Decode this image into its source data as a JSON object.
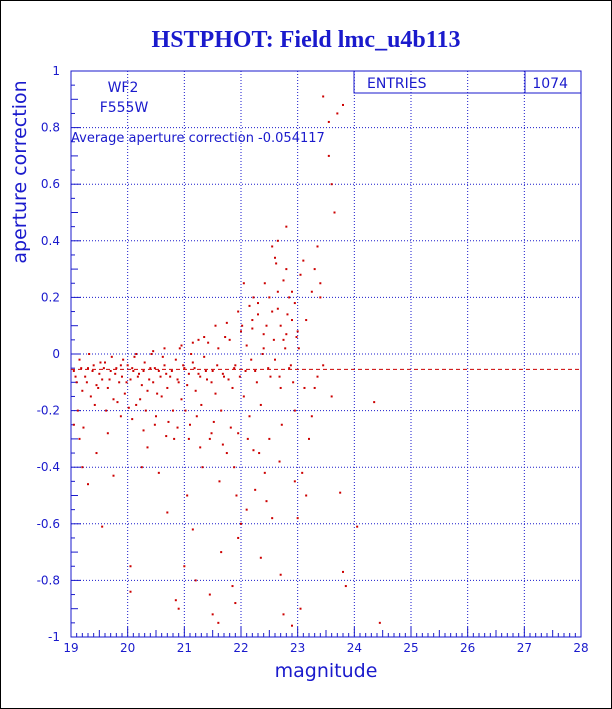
{
  "chart_data": {
    "type": "scatter",
    "title": "HSTPHOT: Field lmc_u4b113",
    "xlabel": "magnitude",
    "ylabel": "aperture correction",
    "xlim": [
      19,
      28
    ],
    "ylim": [
      -1,
      1
    ],
    "x_ticks": [
      "19",
      "20",
      "21",
      "22",
      "23",
      "24",
      "25",
      "26",
      "27",
      "28"
    ],
    "y_ticks": [
      "-1",
      "-0.8",
      "-0.6",
      "-0.4",
      "-0.2",
      "0",
      "0.2",
      "0.4",
      "0.6",
      "0.8",
      "1"
    ],
    "grid": true,
    "average_line": -0.054117,
    "annotations": {
      "chip": "WF2",
      "filter": "F555W",
      "average_text": "Average aperture correction -0.054117"
    },
    "stats_box": {
      "label": "ENTRIES",
      "value": "1074"
    },
    "points": [
      [
        19.05,
        -0.06
      ],
      [
        19.1,
        -0.1
      ],
      [
        19.15,
        -0.02
      ],
      [
        19.2,
        -0.13
      ],
      [
        19.25,
        -0.08
      ],
      [
        19.3,
        -0.05
      ],
      [
        19.35,
        -0.15
      ],
      [
        19.4,
        -0.04
      ],
      [
        19.45,
        -0.11
      ],
      [
        19.5,
        -0.07
      ],
      [
        19.55,
        -0.09
      ],
      [
        19.6,
        -0.03
      ],
      [
        19.65,
        -0.12
      ],
      [
        19.7,
        -0.06
      ],
      [
        19.75,
        -0.16
      ],
      [
        19.8,
        -0.05
      ],
      [
        19.85,
        -0.1
      ],
      [
        19.9,
        -0.08
      ],
      [
        19.95,
        -0.14
      ],
      [
        20.0,
        -0.04
      ],
      [
        20.05,
        -0.09
      ],
      [
        20.1,
        -0.06
      ],
      [
        20.15,
        -0.18
      ],
      [
        20.2,
        -0.07
      ],
      [
        20.25,
        -0.11
      ],
      [
        20.3,
        -0.03
      ],
      [
        20.35,
        -0.13
      ],
      [
        20.4,
        -0.05
      ],
      [
        20.45,
        -0.1
      ],
      [
        20.5,
        -0.22
      ],
      [
        20.55,
        -0.06
      ],
      [
        20.6,
        -0.15
      ],
      [
        20.65,
        -0.04
      ],
      [
        20.7,
        -0.12
      ],
      [
        20.75,
        -0.08
      ],
      [
        20.8,
        -0.2
      ],
      [
        20.85,
        -0.02
      ],
      [
        20.9,
        -0.1
      ],
      [
        20.95,
        -0.16
      ],
      [
        21.0,
        -0.05
      ],
      [
        21.05,
        -0.11
      ],
      [
        21.1,
        -0.25
      ],
      [
        21.15,
        -0.03
      ],
      [
        21.2,
        -0.13
      ],
      [
        21.25,
        -0.07
      ],
      [
        21.3,
        -0.18
      ],
      [
        21.35,
        -0.01
      ],
      [
        21.4,
        -0.09
      ],
      [
        21.45,
        -0.3
      ],
      [
        21.5,
        -0.06
      ],
      [
        21.55,
        -0.14
      ],
      [
        21.6,
        0.02
      ],
      [
        21.65,
        -0.2
      ],
      [
        21.7,
        -0.08
      ],
      [
        21.75,
        -0.35
      ],
      [
        21.8,
        0.05
      ],
      [
        21.85,
        -0.12
      ],
      [
        21.9,
        -0.04
      ],
      [
        21.95,
        -0.28
      ],
      [
        22.0,
        0.08
      ],
      [
        22.05,
        -0.15
      ],
      [
        22.1,
        0.03
      ],
      [
        22.15,
        -0.22
      ],
      [
        22.2,
        0.12
      ],
      [
        22.25,
        -0.06
      ],
      [
        22.3,
        0.18
      ],
      [
        22.35,
        -0.18
      ],
      [
        22.4,
        0.02
      ],
      [
        22.45,
        0.1
      ],
      [
        22.5,
        -0.3
      ],
      [
        22.55,
        0.15
      ],
      [
        22.6,
        -0.02
      ],
      [
        22.65,
        0.22
      ],
      [
        22.7,
        -0.12
      ],
      [
        22.75,
        0.05
      ],
      [
        22.8,
        0.3
      ],
      [
        22.85,
        -0.05
      ],
      [
        22.9,
        0.12
      ],
      [
        22.95,
        -0.2
      ],
      [
        23.0,
        0.08
      ],
      [
        19.12,
        -0.2
      ],
      [
        19.22,
        -0.26
      ],
      [
        19.32,
        0.0
      ],
      [
        19.42,
        -0.18
      ],
      [
        19.52,
        -0.03
      ],
      [
        19.62,
        -0.2
      ],
      [
        19.72,
        -0.01
      ],
      [
        19.82,
        -0.17
      ],
      [
        19.92,
        -0.02
      ],
      [
        20.02,
        -0.19
      ],
      [
        20.12,
        -0.01
      ],
      [
        20.22,
        -0.16
      ],
      [
        20.32,
        -0.2
      ],
      [
        20.42,
        0.0
      ],
      [
        20.52,
        -0.14
      ],
      [
        20.62,
        -0.01
      ],
      [
        20.72,
        -0.24
      ],
      [
        20.82,
        -0.3
      ],
      [
        20.92,
        0.02
      ],
      [
        21.02,
        -0.2
      ],
      [
        21.12,
        0.0
      ],
      [
        21.22,
        -0.22
      ],
      [
        21.32,
        -0.4
      ],
      [
        21.42,
        0.04
      ],
      [
        21.52,
        -0.24
      ],
      [
        21.62,
        -0.45
      ],
      [
        21.72,
        0.06
      ],
      [
        21.82,
        -0.26
      ],
      [
        21.92,
        -0.5
      ],
      [
        22.02,
        0.1
      ],
      [
        22.12,
        -0.3
      ],
      [
        22.22,
        0.2
      ],
      [
        22.32,
        -0.35
      ],
      [
        22.42,
        0.25
      ],
      [
        22.52,
        -0.08
      ],
      [
        22.62,
        0.32
      ],
      [
        22.72,
        -0.25
      ],
      [
        22.82,
        0.14
      ],
      [
        22.92,
        -0.1
      ],
      [
        23.02,
        0.02
      ],
      [
        19.08,
        -0.08
      ],
      [
        19.18,
        -0.05
      ],
      [
        19.28,
        -0.1
      ],
      [
        19.38,
        -0.06
      ],
      [
        19.48,
        -0.12
      ],
      [
        19.58,
        -0.05
      ],
      [
        19.68,
        -0.09
      ],
      [
        19.78,
        -0.07
      ],
      [
        19.88,
        -0.04
      ],
      [
        19.98,
        -0.1
      ],
      [
        20.08,
        -0.05
      ],
      [
        20.18,
        -0.08
      ],
      [
        20.28,
        -0.06
      ],
      [
        20.38,
        -0.09
      ],
      [
        20.48,
        -0.05
      ],
      [
        20.58,
        -0.08
      ],
      [
        20.68,
        -0.07
      ],
      [
        20.78,
        -0.06
      ],
      [
        20.88,
        -0.09
      ],
      [
        20.98,
        -0.04
      ],
      [
        21.08,
        -0.07
      ],
      [
        21.18,
        -0.05
      ],
      [
        21.28,
        -0.08
      ],
      [
        21.38,
        -0.06
      ],
      [
        21.48,
        -0.1
      ],
      [
        21.58,
        -0.04
      ],
      [
        21.68,
        -0.07
      ],
      [
        21.78,
        -0.09
      ],
      [
        21.88,
        -0.05
      ],
      [
        21.98,
        -0.08
      ],
      [
        22.08,
        -0.06
      ],
      [
        22.18,
        -0.02
      ],
      [
        22.28,
        -0.1
      ],
      [
        22.38,
        0.0
      ],
      [
        22.48,
        -0.05
      ],
      [
        22.58,
        0.05
      ],
      [
        22.68,
        -0.08
      ],
      [
        22.78,
        0.02
      ],
      [
        22.88,
        -0.04
      ],
      [
        22.98,
        0.06
      ],
      [
        19.15,
        -0.3
      ],
      [
        19.3,
        -0.46
      ],
      [
        19.45,
        -0.35
      ],
      [
        19.55,
        -0.61
      ],
      [
        19.75,
        -0.43
      ],
      [
        20.05,
        -0.75
      ],
      [
        20.05,
        -0.84
      ],
      [
        20.35,
        -0.33
      ],
      [
        20.55,
        -0.42
      ],
      [
        20.7,
        -0.56
      ],
      [
        20.85,
        -0.87
      ],
      [
        20.9,
        -0.9
      ],
      [
        21.0,
        -0.75
      ],
      [
        21.05,
        -0.5
      ],
      [
        21.15,
        -0.62
      ],
      [
        21.2,
        -0.8
      ],
      [
        21.45,
        -0.85
      ],
      [
        21.5,
        -0.92
      ],
      [
        21.6,
        -0.95
      ],
      [
        21.65,
        -0.7
      ],
      [
        21.85,
        -0.82
      ],
      [
        21.9,
        -0.88
      ],
      [
        21.95,
        -0.65
      ],
      [
        22.0,
        -0.6
      ],
      [
        22.1,
        -0.55
      ],
      [
        22.25,
        -0.48
      ],
      [
        22.35,
        -0.72
      ],
      [
        22.45,
        -0.52
      ],
      [
        22.55,
        -0.58
      ],
      [
        22.7,
        -0.78
      ],
      [
        22.75,
        -0.92
      ],
      [
        22.9,
        -0.96
      ],
      [
        23.05,
        -0.9
      ],
      [
        23.15,
        -0.5
      ],
      [
        23.0,
        -0.58
      ],
      [
        22.95,
        -0.45
      ],
      [
        19.05,
        -0.25
      ],
      [
        19.2,
        -0.4
      ],
      [
        19.65,
        -0.28
      ],
      [
        20.25,
        -0.4
      ],
      [
        22.55,
        0.38
      ],
      [
        22.6,
        0.34
      ],
      [
        22.65,
        0.4
      ],
      [
        22.75,
        0.26
      ],
      [
        22.8,
        0.45
      ],
      [
        22.9,
        0.22
      ],
      [
        22.95,
        0.18
      ],
      [
        23.05,
        0.28
      ],
      [
        23.1,
        0.33
      ],
      [
        23.15,
        0.12
      ],
      [
        23.25,
        0.22
      ],
      [
        23.3,
        0.3
      ],
      [
        23.35,
        0.38
      ],
      [
        23.4,
        0.25
      ],
      [
        23.4,
        0.2
      ],
      [
        23.55,
        0.7
      ],
      [
        23.6,
        0.6
      ],
      [
        23.65,
        0.5
      ],
      [
        23.7,
        0.85
      ],
      [
        23.8,
        0.88
      ],
      [
        23.45,
        0.91
      ],
      [
        23.55,
        0.82
      ],
      [
        23.2,
        -0.3
      ],
      [
        23.25,
        -0.22
      ],
      [
        23.3,
        -0.12
      ],
      [
        23.35,
        -0.08
      ],
      [
        23.45,
        -0.04
      ],
      [
        23.6,
        -0.15
      ],
      [
        23.75,
        -0.49
      ],
      [
        23.8,
        -0.77
      ],
      [
        23.85,
        -0.82
      ],
      [
        24.05,
        -0.61
      ],
      [
        24.35,
        -0.17
      ],
      [
        24.45,
        -0.95
      ],
      [
        22.15,
        0.17
      ],
      [
        22.2,
        0.09
      ],
      [
        22.3,
        0.14
      ],
      [
        22.4,
        0.07
      ],
      [
        22.05,
        0.25
      ],
      [
        22.5,
        0.2
      ],
      [
        21.95,
        0.15
      ],
      [
        21.75,
        0.11
      ],
      [
        21.55,
        0.1
      ],
      [
        21.35,
        0.06
      ],
      [
        21.25,
        0.05
      ],
      [
        21.15,
        0.04
      ],
      [
        20.95,
        0.03
      ],
      [
        20.65,
        0.02
      ],
      [
        20.45,
        0.01
      ],
      [
        20.15,
        0.0
      ],
      [
        22.7,
        0.1
      ],
      [
        22.8,
        0.07
      ],
      [
        22.85,
        0.2
      ],
      [
        22.65,
        0.16
      ],
      [
        23.08,
        -0.42
      ],
      [
        23.12,
        -0.12
      ],
      [
        22.68,
        -0.38
      ],
      [
        22.42,
        -0.42
      ],
      [
        22.22,
        -0.34
      ],
      [
        21.88,
        -0.4
      ],
      [
        21.68,
        -0.32
      ],
      [
        21.48,
        -0.28
      ],
      [
        21.28,
        -0.33
      ],
      [
        21.08,
        -0.3
      ],
      [
        20.88,
        -0.26
      ],
      [
        20.68,
        -0.29
      ],
      [
        20.48,
        -0.25
      ],
      [
        20.28,
        -0.27
      ],
      [
        20.08,
        -0.23
      ],
      [
        19.88,
        -0.22
      ]
    ]
  }
}
